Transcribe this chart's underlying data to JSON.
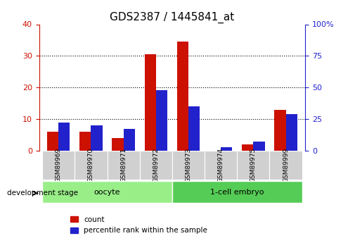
{
  "title": "GDS2387 / 1445841_at",
  "samples": [
    "GSM89969",
    "GSM89970",
    "GSM89971",
    "GSM89972",
    "GSM89973",
    "GSM89974",
    "GSM89975",
    "GSM89999"
  ],
  "count": [
    6,
    6,
    4,
    30.5,
    34.5,
    0,
    2,
    13
  ],
  "percentile": [
    22,
    20,
    17,
    48,
    35,
    3,
    7,
    29
  ],
  "left_ylim": [
    0,
    40
  ],
  "right_ylim": [
    0,
    100
  ],
  "left_yticks": [
    0,
    10,
    20,
    30,
    40
  ],
  "right_yticks": [
    0,
    25,
    50,
    75,
    100
  ],
  "bar_color_count": "#cc1100",
  "bar_color_percentile": "#2222cc",
  "groups": [
    {
      "label": "oocyte",
      "start": 0,
      "end": 4,
      "color": "#99ee88"
    },
    {
      "label": "1-cell embryo",
      "start": 4,
      "end": 8,
      "color": "#55cc55"
    }
  ],
  "group_label_prefix": "development stage",
  "bar_width": 0.35,
  "left_axis_color": "#cc1100",
  "right_axis_color": "#2222cc",
  "title_fontsize": 11,
  "legend_items": [
    "count",
    "percentile rank within the sample"
  ],
  "xbar_section_color": "#d0d0d0"
}
